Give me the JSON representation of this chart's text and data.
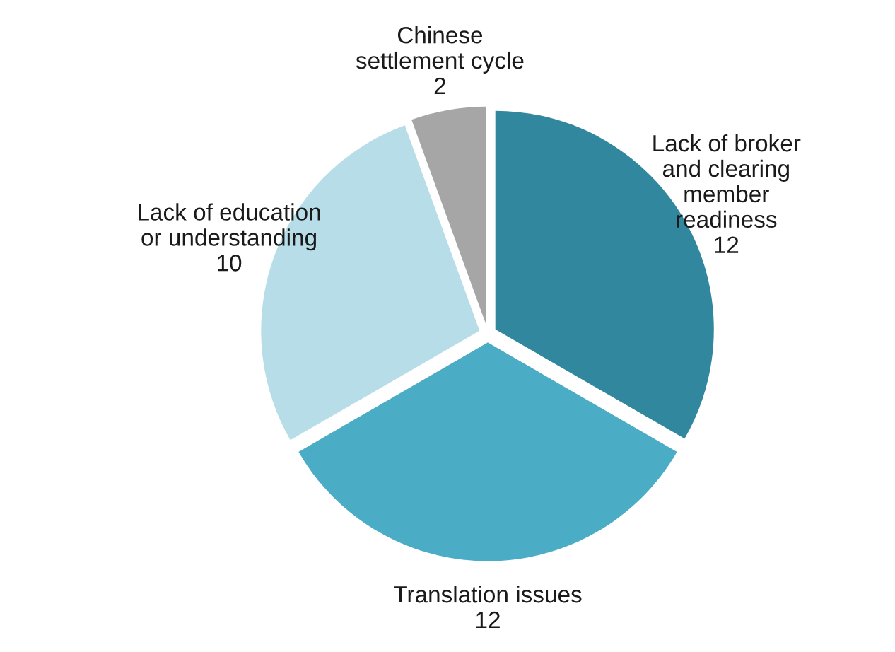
{
  "chart_data": {
    "type": "pie",
    "categories": [
      "Lack of broker\nand clearing\nmember\nreadiness",
      "Translation issues",
      "Lack of education\nor understanding",
      "Chinese\nsettlement cycle"
    ],
    "values": [
      12,
      12,
      10,
      2
    ],
    "colors": [
      "#31879e",
      "#4bacc6",
      "#b7dee8",
      "#a6a6a6"
    ],
    "data_labels": true
  }
}
